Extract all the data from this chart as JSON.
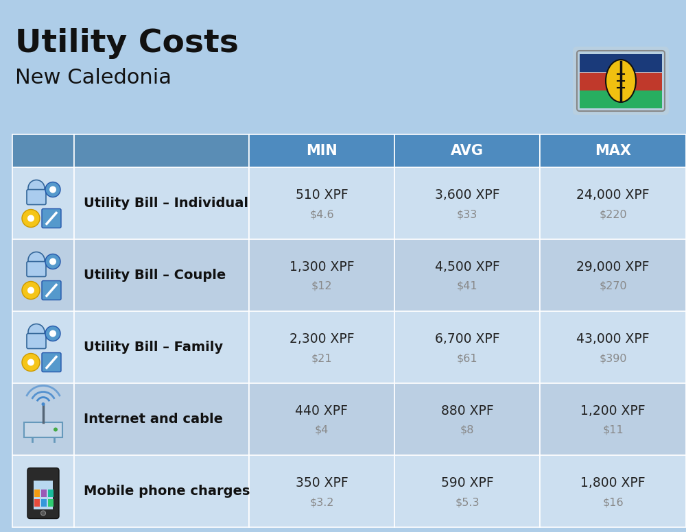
{
  "title": "Utility Costs",
  "subtitle": "New Caledonia",
  "background_color": "#aecde8",
  "header_bg_color": "#4e8bbf",
  "header_text_color": "#ffffff",
  "row_bg_color_1": "#ccdff0",
  "row_bg_color_2": "#bbcfe3",
  "col_header_labels": [
    "MIN",
    "AVG",
    "MAX"
  ],
  "rows": [
    {
      "label": "Utility Bill – Individual",
      "min_xpf": "510 XPF",
      "min_usd": "$4.6",
      "avg_xpf": "3,600 XPF",
      "avg_usd": "$33",
      "max_xpf": "24,000 XPF",
      "max_usd": "$220"
    },
    {
      "label": "Utility Bill – Couple",
      "min_xpf": "1,300 XPF",
      "min_usd": "$12",
      "avg_xpf": "4,500 XPF",
      "avg_usd": "$41",
      "max_xpf": "29,000 XPF",
      "max_usd": "$270"
    },
    {
      "label": "Utility Bill – Family",
      "min_xpf": "2,300 XPF",
      "min_usd": "$21",
      "avg_xpf": "6,700 XPF",
      "avg_usd": "$61",
      "max_xpf": "43,000 XPF",
      "max_usd": "$390"
    },
    {
      "label": "Internet and cable",
      "min_xpf": "440 XPF",
      "min_usd": "$4",
      "avg_xpf": "880 XPF",
      "avg_usd": "$8",
      "max_xpf": "1,200 XPF",
      "max_usd": "$11"
    },
    {
      "label": "Mobile phone charges",
      "min_xpf": "350 XPF",
      "min_usd": "$3.2",
      "avg_xpf": "590 XPF",
      "avg_usd": "$5.3",
      "max_xpf": "1,800 XPF",
      "max_usd": "$16"
    }
  ],
  "usd_text_color": "#888888",
  "main_text_color": "#222222",
  "label_text_color": "#111111"
}
